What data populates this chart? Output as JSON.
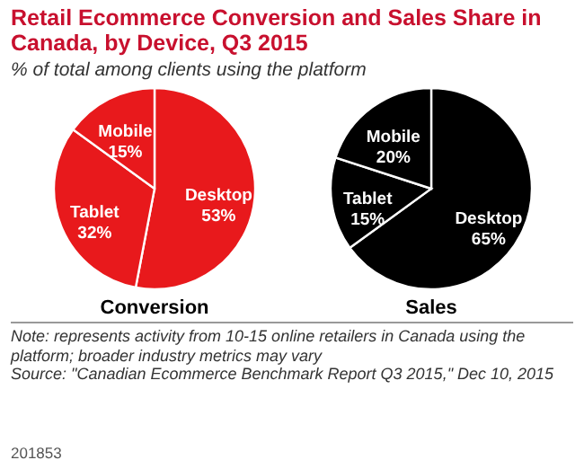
{
  "chart_data": [
    {
      "type": "pie",
      "title": "Retail Ecommerce Conversion and Sales Share in Canada, by Device, Q3 2015",
      "subtitle": "% of total among clients using the platform",
      "xlabel": "Conversion",
      "categories": [
        "Desktop",
        "Tablet",
        "Mobile"
      ],
      "values": [
        53,
        32,
        15
      ],
      "value_labels": [
        "53%",
        "32%",
        "15%"
      ],
      "colors": [
        "#e8191c",
        "#e8191c",
        "#e8191c"
      ],
      "annotations": [
        "Note: represents activity from 10-15 online retailers in Canada using the platform; broader industry metrics may vary",
        "Source: \"Canadian Ecommerce Benchmark Report Q3 2015,\" Dec 10, 2015",
        "201853"
      ]
    },
    {
      "type": "pie",
      "xlabel": "Sales",
      "categories": [
        "Desktop",
        "Tablet",
        "Mobile"
      ],
      "values": [
        65,
        15,
        20
      ],
      "value_labels": [
        "65%",
        "15%",
        "20%"
      ],
      "colors": [
        "#000000",
        "#000000",
        "#000000"
      ]
    }
  ]
}
